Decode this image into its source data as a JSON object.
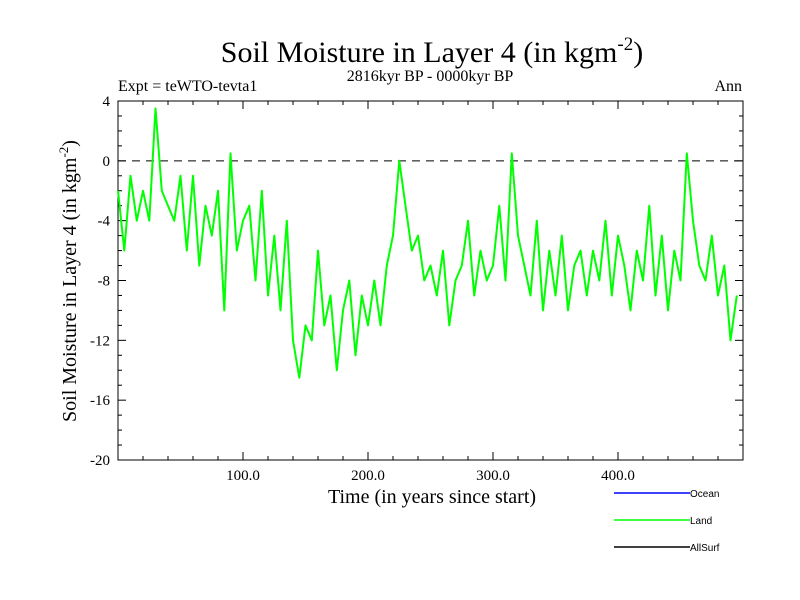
{
  "chart_data": {
    "type": "line",
    "title": "Soil Moisture in Layer 4 (in kgm",
    "title_sup": "-2",
    "title_close": ")",
    "subtitle": "2816kyr BP - 0000kyr BP",
    "experiment": "Expt = teWTO-tevta1",
    "season": "Ann",
    "xlabel": "Time (in years since start)",
    "ylabel": "Soil Moisture in Layer 4 (in kgm",
    "ylabel_sup": "-2",
    "ylabel_close": ")",
    "xlim": [
      0,
      500
    ],
    "ylim": [
      -20,
      4
    ],
    "xticks": [
      100,
      200,
      300,
      400
    ],
    "xtick_labels": [
      "100.0",
      "200.0",
      "300.0",
      "400.0"
    ],
    "yticks": [
      4,
      0,
      -4,
      -8,
      -12,
      -16,
      -20
    ],
    "ytick_labels": [
      "4",
      "0",
      "-4",
      "-8",
      "-12",
      "-16",
      "-20"
    ],
    "reference_line": 0,
    "legend": [
      {
        "name": "Ocean",
        "color": "#0000ff"
      },
      {
        "name": "Land",
        "color": "#00ff00"
      },
      {
        "name": "AllSurf",
        "color": "#000000"
      }
    ],
    "series": [
      {
        "name": "Land",
        "color": "#00ff00",
        "x": [
          0,
          5,
          10,
          15,
          20,
          25,
          30,
          35,
          40,
          45,
          50,
          55,
          60,
          65,
          70,
          75,
          80,
          85,
          90,
          95,
          100,
          105,
          110,
          115,
          120,
          125,
          130,
          135,
          140,
          145,
          150,
          155,
          160,
          165,
          170,
          175,
          180,
          185,
          190,
          195,
          200,
          205,
          210,
          215,
          220,
          225,
          230,
          235,
          240,
          245,
          250,
          255,
          260,
          265,
          270,
          275,
          280,
          285,
          290,
          295,
          300,
          305,
          310,
          315,
          320,
          325,
          330,
          335,
          340,
          345,
          350,
          355,
          360,
          365,
          370,
          375,
          380,
          385,
          390,
          395,
          400,
          405,
          410,
          415,
          420,
          425,
          430,
          435,
          440,
          445,
          450,
          455,
          460,
          465,
          470,
          475,
          480,
          485,
          490,
          495
        ],
        "y": [
          -2,
          -6,
          -1,
          -4,
          -2,
          -4,
          3.5,
          -2,
          -3,
          -4,
          -1,
          -6,
          -1,
          -7,
          -3,
          -5,
          -2,
          -10,
          0.5,
          -6,
          -4,
          -3,
          -8,
          -2,
          -9,
          -5,
          -10,
          -4,
          -12,
          -14.5,
          -11,
          -12,
          -6,
          -11,
          -9,
          -14,
          -10,
          -8,
          -13,
          -9,
          -11,
          -8,
          -11,
          -7,
          -5,
          0,
          -3,
          -6,
          -5,
          -8,
          -7,
          -9,
          -6,
          -11,
          -8,
          -7,
          -4,
          -9,
          -6,
          -8,
          -7,
          -3,
          -8,
          0.5,
          -5,
          -7,
          -9,
          -4,
          -10,
          -6,
          -9,
          -5,
          -10,
          -7,
          -6,
          -9,
          -6,
          -8,
          -4,
          -9,
          -5,
          -7,
          -10,
          -6,
          -8,
          -3,
          -9,
          -5,
          -10,
          -6,
          -8,
          0.5,
          -4,
          -7,
          -8,
          -5,
          -9,
          -7,
          -12,
          -9
        ]
      }
    ]
  }
}
